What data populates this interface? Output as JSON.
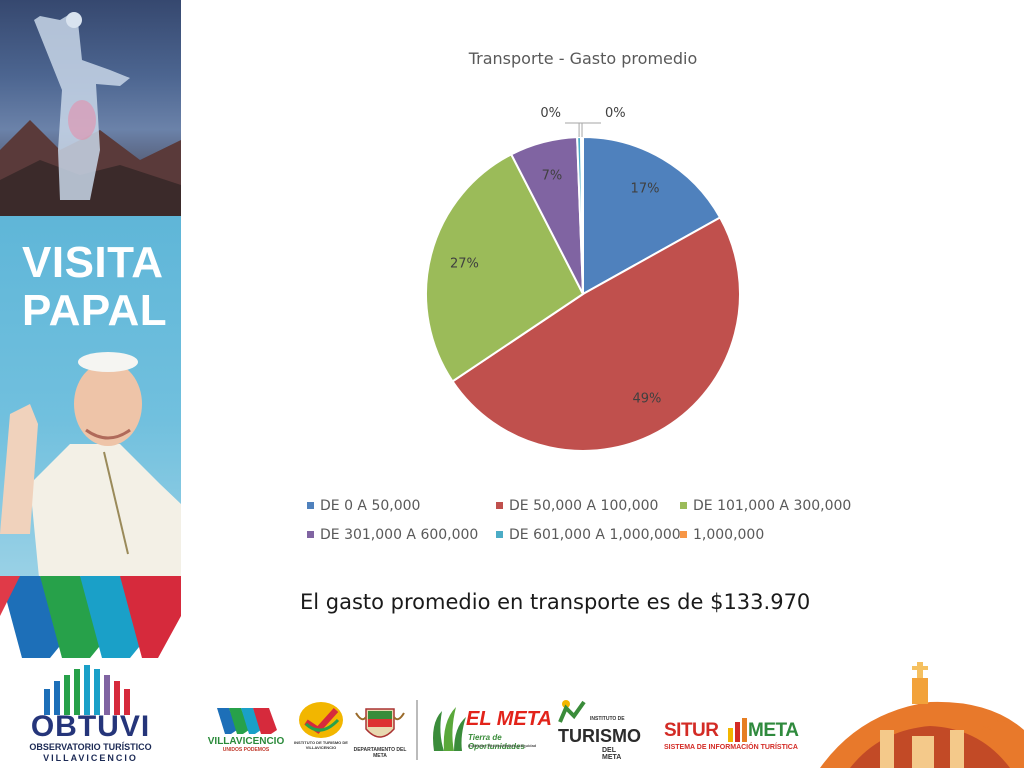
{
  "banner": {
    "title_line1": "VISITA",
    "title_line2": "PAPAL",
    "org_name": "OBTUVI",
    "org_subtitle_1": "OBSERVATORIO TURÍSTICO",
    "org_subtitle_2": "VILLAVICENCIO"
  },
  "chart_data": {
    "type": "pie",
    "title": "Transporte - Gasto promedio",
    "legend_position": "bottom",
    "series": [
      {
        "name": "DE 0 A 50,000",
        "value": 17,
        "label": "17%",
        "color": "#4f81bd"
      },
      {
        "name": "DE 50,000 A 100,000",
        "value": 49,
        "label": "49%",
        "color": "#c0504d"
      },
      {
        "name": "DE 101,000 A 300,000",
        "value": 27,
        "label": "27%",
        "color": "#9bbb59"
      },
      {
        "name": "DE 301,000 A 600,000",
        "value": 7,
        "label": "7%",
        "color": "#8064a2"
      },
      {
        "name": "DE 601,000 A 1,000,000",
        "value": 0.4,
        "label": "0%",
        "color": "#4bacc6"
      },
      {
        "name": "1,000,000",
        "value": 0.2,
        "label": "0%",
        "color": "#f79646"
      }
    ]
  },
  "caption": "El gasto promedio en transporte es de $133.970",
  "footer": {
    "villavicencio_name": "VILLAVICENCIO",
    "villavicencio_tag": "UNIDOS PODEMOS",
    "instituto_text": "INSTITUTO DE TURISMO DE VILLAVICENCIO",
    "departamento_text": "DEPARTAMENTO DEL META",
    "elmeta_name": "EL META",
    "elmeta_tag": "Tierra de Oportunidades",
    "elmeta_tag2": "Inclusión, Reconciliación y Equidad",
    "turismo_inst": "INSTITUTO DE",
    "turismo_name": "TURISMO",
    "turismo_sub": "DEL META",
    "situr_name": "SITUR",
    "situr_meta": "META",
    "situr_sub": "SISTEMA DE INFORMACIÓN TURÍSTICA"
  }
}
